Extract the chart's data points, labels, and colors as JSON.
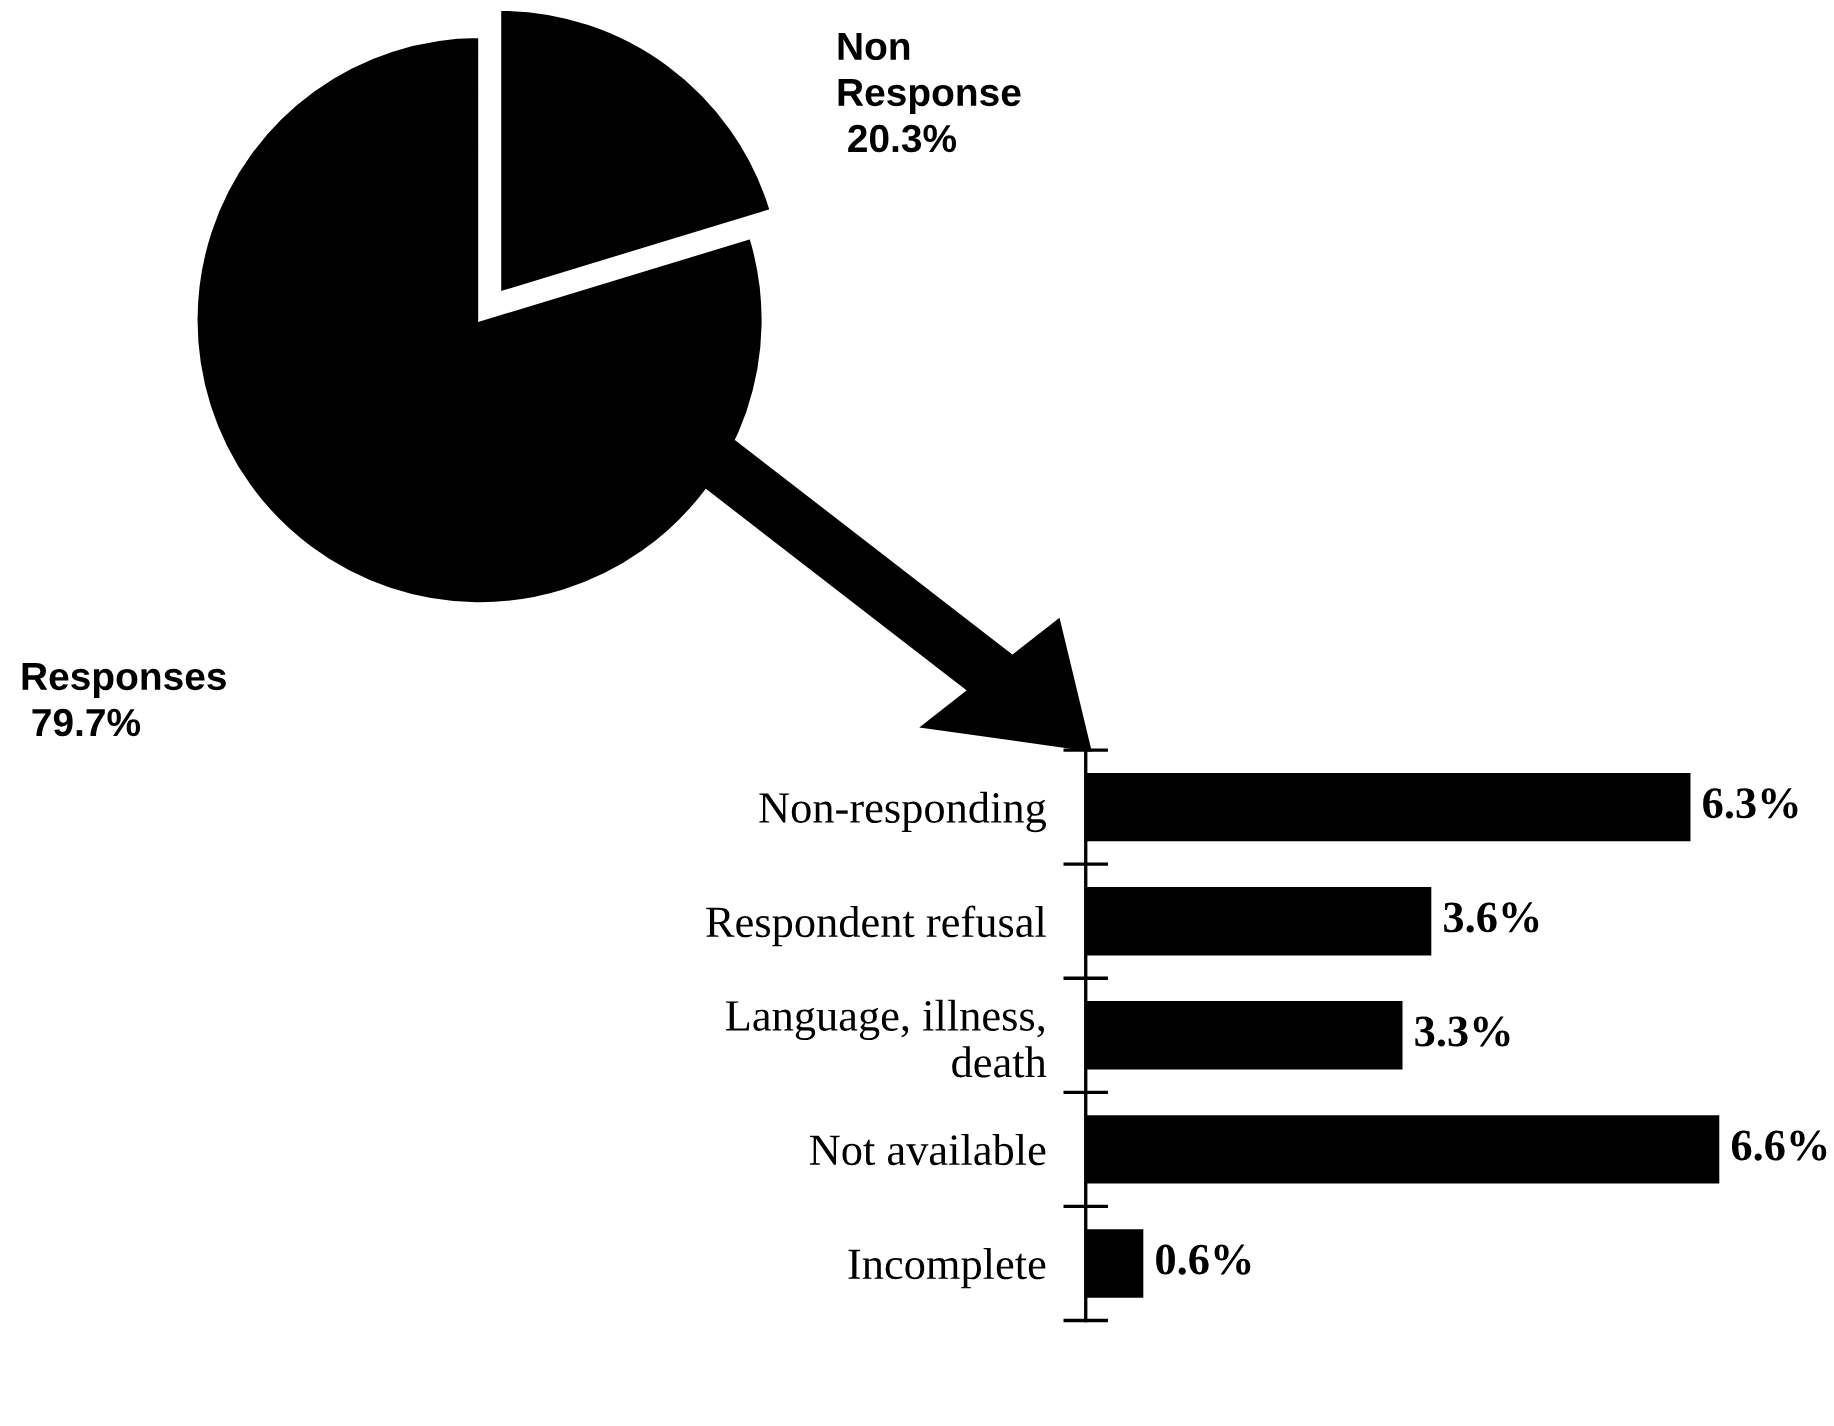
{
  "chart_data": [
    {
      "type": "pie",
      "categories": [
        "Responses",
        "Non\nResponse"
      ],
      "values": [
        79.7,
        20.3
      ],
      "colors": [
        "#000000",
        "#000000"
      ],
      "value_labels": [
        "79.7%",
        "20.3%"
      ]
    },
    {
      "type": "bar",
      "orientation": "horizontal",
      "categories": [
        "Non-responding",
        "Respondent refusal",
        "Language, illness,\ndeath",
        "Not available",
        "Incomplete"
      ],
      "values": [
        6.3,
        3.6,
        3.3,
        6.6,
        0.6
      ],
      "color": "#000000",
      "value_labels": [
        "6.3%",
        "3.6%",
        "3.3%",
        "6.6%",
        "0.6%"
      ],
      "tick_labels": "y"
    }
  ]
}
